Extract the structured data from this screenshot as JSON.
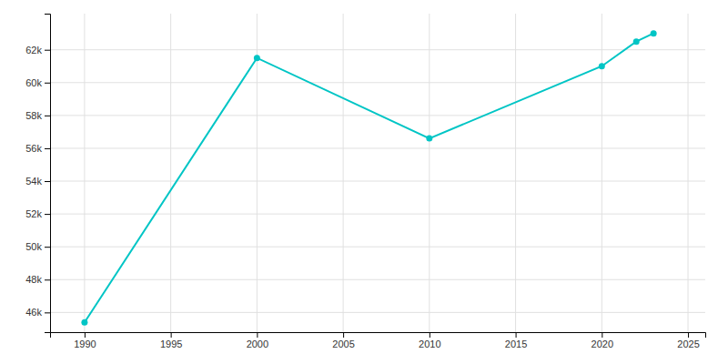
{
  "chart_data": {
    "type": "line",
    "x": [
      1990,
      2000,
      2010,
      2020,
      2022,
      2023
    ],
    "values": [
      45400,
      61500,
      56600,
      61000,
      62500,
      63000
    ],
    "color": "#00C5C5",
    "marker": "circle",
    "xlim": [
      1988,
      2026
    ],
    "ylim": [
      44800,
      64200
    ],
    "xticks": [
      1990,
      1995,
      2000,
      2005,
      2010,
      2015,
      2020,
      2025
    ],
    "yticks": [
      {
        "value": 46000,
        "label": "46k"
      },
      {
        "value": 48000,
        "label": "48k"
      },
      {
        "value": 50000,
        "label": "50k"
      },
      {
        "value": 52000,
        "label": "52k"
      },
      {
        "value": 54000,
        "label": "54k"
      },
      {
        "value": 56000,
        "label": "56k"
      },
      {
        "value": 58000,
        "label": "58k"
      },
      {
        "value": 60000,
        "label": "60k"
      },
      {
        "value": 62000,
        "label": "62k"
      }
    ],
    "grid": true
  }
}
